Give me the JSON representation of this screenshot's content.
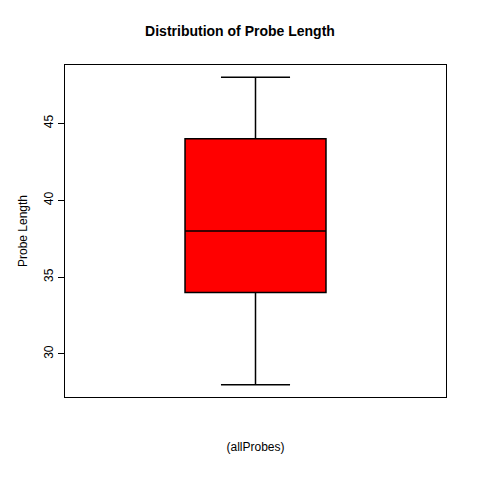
{
  "chart_data": {
    "type": "box",
    "title": "Distribution of Probe Length",
    "x_label": "(allProbes)",
    "y_label": "Probe Length",
    "min": 28,
    "q1": 34,
    "median": 38,
    "q3": 44,
    "max": 48,
    "color": "#ff0000",
    "ylim": [
      27.2,
      48.8
    ],
    "yticks": [
      30,
      35,
      40,
      45
    ],
    "grid": false,
    "tick_labels": "y"
  }
}
